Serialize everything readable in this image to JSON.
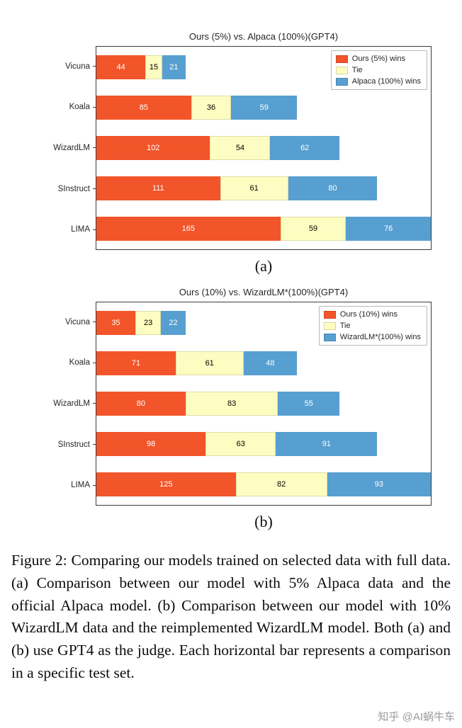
{
  "colors": {
    "win": "#f2552a",
    "tie": "#fdfdc2",
    "lose": "#579fd0",
    "frame": "#3a3a3a"
  },
  "chart_data": [
    {
      "type": "bar",
      "orientation": "horizontal-stacked",
      "title": "Ours (5%) vs. Alpaca (100%)(GPT4)",
      "sublabel": "(a)",
      "categories": [
        "Vicuna",
        "Koala",
        "WizardLM",
        "SInstruct",
        "LIMA"
      ],
      "xmax": 300,
      "legend_position": "top-right",
      "series": [
        {
          "name": "Ours (5%) wins",
          "color_key": "win",
          "label_color": "#ffffff",
          "values": [
            44,
            85,
            102,
            111,
            165
          ]
        },
        {
          "name": "Tie",
          "color_key": "tie",
          "label_color": "#000000",
          "values": [
            15,
            36,
            54,
            61,
            59
          ]
        },
        {
          "name": "Alpaca (100%) wins",
          "color_key": "lose",
          "label_color": "#ffffff",
          "values": [
            21,
            59,
            62,
            80,
            76
          ]
        }
      ]
    },
    {
      "type": "bar",
      "orientation": "horizontal-stacked",
      "title": "Ours (10%) vs. WizardLM*(100%)(GPT4)",
      "sublabel": "(b)",
      "categories": [
        "Vicuna",
        "Koala",
        "WizardLM",
        "SInstruct",
        "LIMA"
      ],
      "xmax": 300,
      "legend_position": "top-right",
      "series": [
        {
          "name": "Ours (10%) wins",
          "color_key": "win",
          "label_color": "#ffffff",
          "values": [
            35,
            71,
            80,
            98,
            125
          ]
        },
        {
          "name": "Tie",
          "color_key": "tie",
          "label_color": "#000000",
          "values": [
            23,
            61,
            83,
            63,
            82
          ]
        },
        {
          "name": "WizardLM*(100%) wins",
          "color_key": "lose",
          "label_color": "#ffffff",
          "values": [
            22,
            48,
            55,
            91,
            93
          ]
        }
      ]
    }
  ],
  "caption": "Figure 2: Comparing our models trained on selected data with full data. (a) Comparison between our model with 5% Alpaca data and the official Alpaca model. (b) Comparison between our model with 10% WizardLM data and the reimplemented WizardLM model. Both (a) and (b) use GPT4 as the judge. Each horizontal bar represents a comparison in a specific test set.",
  "watermark": "知乎 @AI蜗牛车"
}
